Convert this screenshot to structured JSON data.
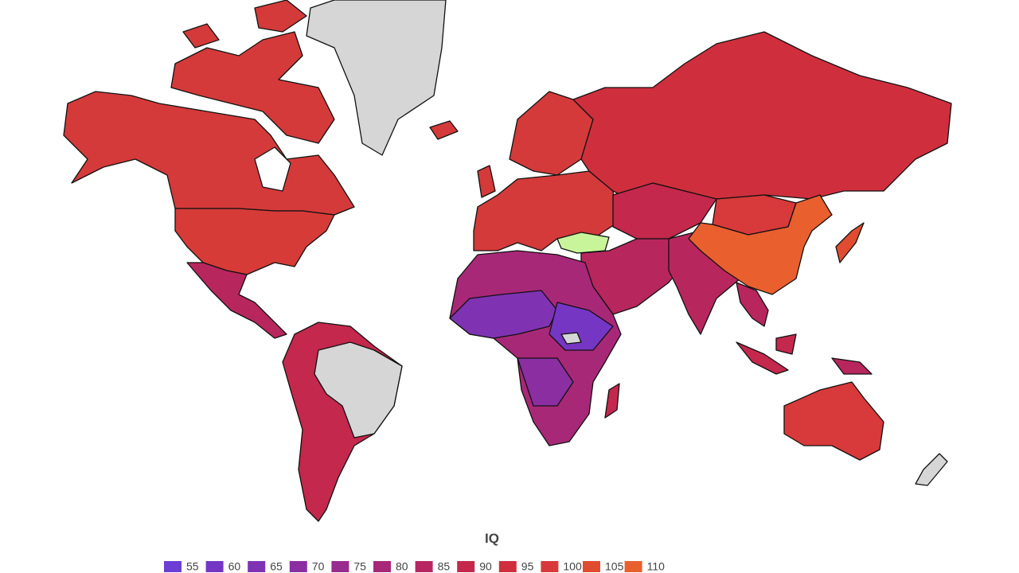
{
  "legend": {
    "title": "IQ",
    "items": [
      {
        "value": 55,
        "color": "#6b3fd4"
      },
      {
        "value": 60,
        "color": "#7636c4"
      },
      {
        "value": 65,
        "color": "#7f33b2"
      },
      {
        "value": 70,
        "color": "#8b2ea2"
      },
      {
        "value": 75,
        "color": "#982b8e"
      },
      {
        "value": 80,
        "color": "#a82878"
      },
      {
        "value": 85,
        "color": "#b82662"
      },
      {
        "value": 90,
        "color": "#c4284c"
      },
      {
        "value": 95,
        "color": "#cf2f3d"
      },
      {
        "value": 100,
        "color": "#d8393a"
      },
      {
        "value": 105,
        "color": "#e04c30"
      },
      {
        "value": 110,
        "color": "#e95f2e"
      }
    ]
  }
}
